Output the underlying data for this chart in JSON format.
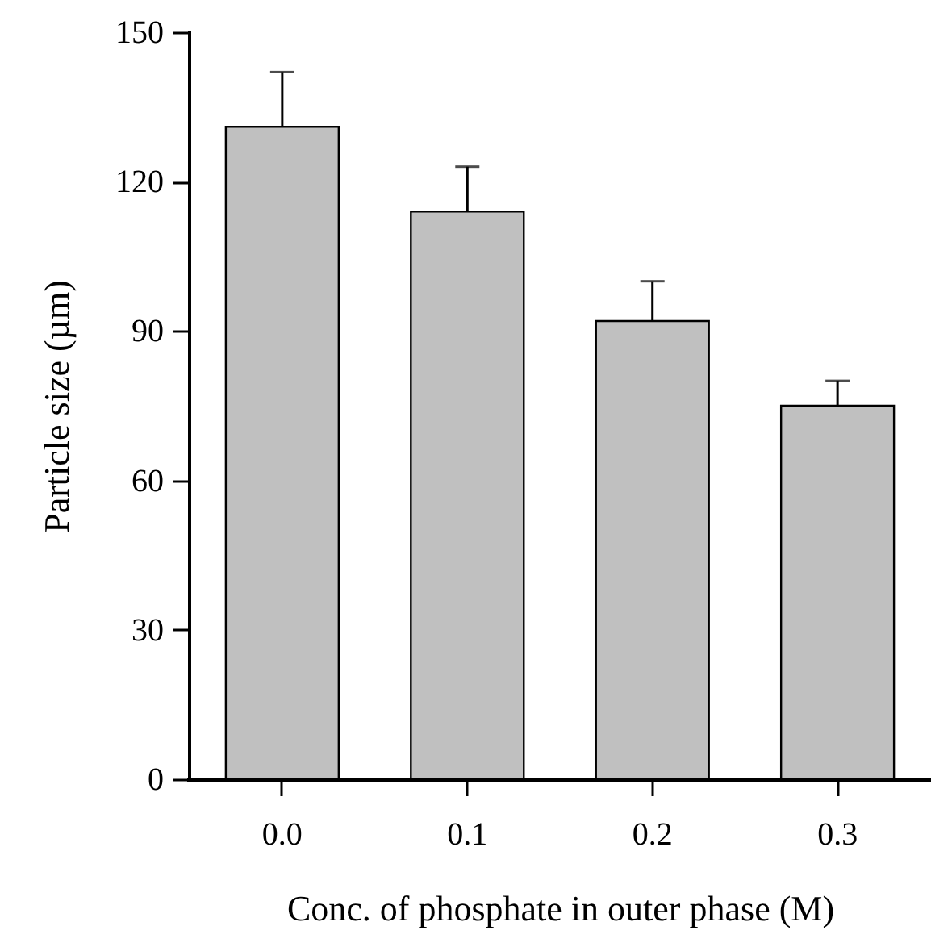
{
  "chart_data": {
    "type": "bar",
    "xlabel": "Conc. of phosphate in outer phase (M)",
    "ylabel": "Particle size (µm)",
    "categories": [
      "0.0",
      "0.1",
      "0.2",
      "0.3"
    ],
    "values": [
      131,
      114,
      92,
      75
    ],
    "errors": [
      [
        131,
        142
      ],
      [
        114,
        123
      ],
      [
        92,
        100
      ],
      [
        75,
        80
      ]
    ],
    "color": "#c0c0c0",
    "ylim": [
      0,
      150
    ],
    "yticks": [
      0,
      30,
      60,
      90,
      120,
      150
    ],
    "grid": false
  }
}
